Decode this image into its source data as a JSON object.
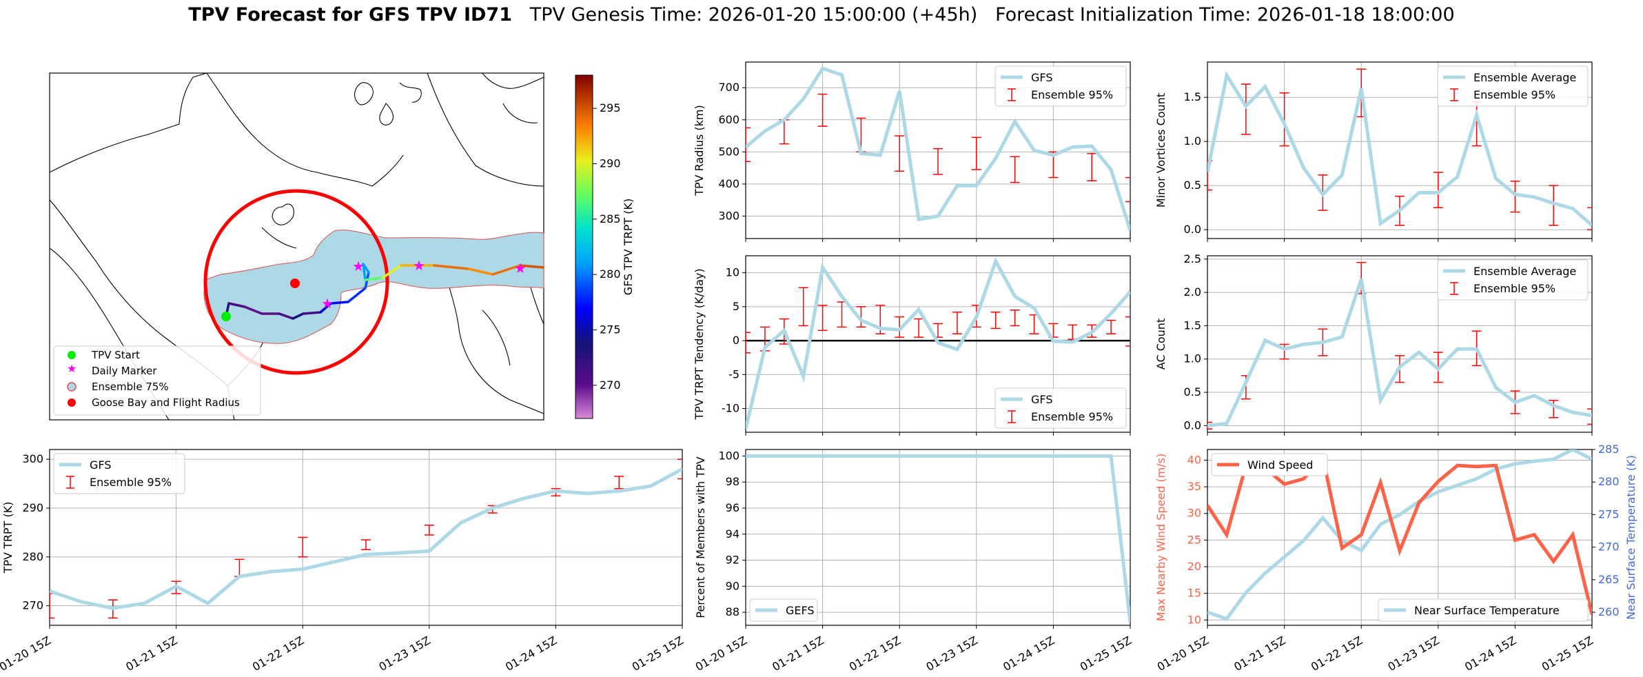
{
  "title": {
    "bold": "TPV Forecast for GFS TPV ID71",
    "genesis": "TPV Genesis Time: 2026-01-20 15:00:00 (+45h)",
    "init": "Forecast Initialization Time: 2026-01-18 18:00:00"
  },
  "x_ticks": [
    "01-20 15Z",
    "01-21 15Z",
    "01-22 15Z",
    "01-23 15Z",
    "01-24 15Z",
    "01-25 15Z"
  ],
  "colors": {
    "line": "#ADD8E6",
    "err": "#FF0000",
    "wind": "#FF6347",
    "temp_axis": "#4169E1"
  },
  "chart_data": [
    {
      "id": "map",
      "type": "scatter",
      "title": "TPV track map",
      "legend": [
        "TPV Start",
        "Daily Marker",
        "Ensemble 75%",
        "Goose Bay and Flight Radius"
      ],
      "legend_position": "lower-left",
      "colorbar": {
        "label": "GFS TPV TRPT (K)",
        "ticks": [
          270,
          275,
          280,
          285,
          290,
          295
        ],
        "range": [
          267,
          298
        ]
      },
      "track_trpt_k": [
        273,
        271,
        270,
        270,
        271,
        274,
        271,
        276,
        277,
        278,
        279,
        281,
        281,
        287,
        290,
        292,
        294,
        293,
        294,
        295,
        298
      ]
    },
    {
      "id": "radius",
      "type": "line",
      "ylabel": "TPV Radius (km)",
      "legend": [
        "GFS",
        "Ensemble 95%"
      ],
      "legend_position": "upper-right",
      "ylim": [
        230,
        780
      ],
      "yticks": [
        300,
        400,
        500,
        600,
        700
      ],
      "values": [
        515,
        565,
        600,
        665,
        760,
        740,
        495,
        490,
        690,
        290,
        300,
        395,
        395,
        480,
        595,
        505,
        490,
        515,
        518,
        445,
        255
      ],
      "errorbars": [
        {
          "x": 0,
          "lo": 470,
          "hi": 575
        },
        {
          "x": 2,
          "lo": 525,
          "hi": 600
        },
        {
          "x": 4,
          "lo": 580,
          "hi": 680
        },
        {
          "x": 6,
          "lo": 500,
          "hi": 605
        },
        {
          "x": 8,
          "lo": 440,
          "hi": 550
        },
        {
          "x": 10,
          "lo": 430,
          "hi": 510
        },
        {
          "x": 12,
          "lo": 445,
          "hi": 545
        },
        {
          "x": 14,
          "lo": 405,
          "hi": 485
        },
        {
          "x": 16,
          "lo": 420,
          "hi": 500
        },
        {
          "x": 18,
          "lo": 410,
          "hi": 495
        },
        {
          "x": 20,
          "lo": 345,
          "hi": 420
        }
      ]
    },
    {
      "id": "minor_vortices",
      "type": "line",
      "ylabel": "Minor Vortices Count",
      "legend": [
        "Ensemble Average",
        "Ensemble 95%"
      ],
      "legend_position": "upper-right",
      "ylim": [
        -0.1,
        1.9
      ],
      "yticks": [
        0.0,
        0.5,
        1.0,
        1.5
      ],
      "values": [
        0.65,
        1.75,
        1.4,
        1.62,
        1.2,
        0.7,
        0.4,
        0.62,
        1.6,
        0.07,
        0.22,
        0.42,
        0.42,
        0.6,
        1.3,
        0.58,
        0.4,
        0.37,
        0.3,
        0.24,
        0.05
      ],
      "errorbars": [
        {
          "x": 0,
          "lo": 0.45,
          "hi": 0.78
        },
        {
          "x": 2,
          "lo": 1.08,
          "hi": 1.65
        },
        {
          "x": 4,
          "lo": 0.95,
          "hi": 1.55
        },
        {
          "x": 6,
          "lo": 0.22,
          "hi": 0.62
        },
        {
          "x": 8,
          "lo": 1.28,
          "hi": 1.82
        },
        {
          "x": 10,
          "lo": 0.05,
          "hi": 0.38
        },
        {
          "x": 12,
          "lo": 0.25,
          "hi": 0.65
        },
        {
          "x": 14,
          "lo": 0.95,
          "hi": 1.45
        },
        {
          "x": 16,
          "lo": 0.2,
          "hi": 0.55
        },
        {
          "x": 18,
          "lo": 0.05,
          "hi": 0.5
        },
        {
          "x": 20,
          "lo": 0.0,
          "hi": 0.25
        }
      ]
    },
    {
      "id": "tendency",
      "type": "line",
      "ylabel": "TPV TRPT Tendency (K/day)",
      "legend": [
        "GFS",
        "Ensemble 95%"
      ],
      "legend_position": "lower-right",
      "ylim": [
        -13.5,
        12.5
      ],
      "yticks": [
        -10,
        -5,
        0,
        5,
        10
      ],
      "zero_line": true,
      "values": [
        -13,
        -1,
        1.5,
        -5.3,
        10.8,
        6.5,
        3,
        1.8,
        1.6,
        4.6,
        -0.3,
        -1.3,
        3.5,
        11.7,
        6.5,
        4.8,
        -0.1,
        -0.2,
        1.2,
        4,
        7.2
      ],
      "errorbars": [
        {
          "x": 0,
          "lo": -1.8,
          "hi": 1.2
        },
        {
          "x": 1,
          "lo": -1.5,
          "hi": 2.0
        },
        {
          "x": 2,
          "lo": -0.5,
          "hi": 3.2
        },
        {
          "x": 3,
          "lo": 2.2,
          "hi": 7.8
        },
        {
          "x": 4,
          "lo": 1.5,
          "hi": 5.2
        },
        {
          "x": 5,
          "lo": 2.0,
          "hi": 5.7
        },
        {
          "x": 6,
          "lo": 2.0,
          "hi": 5.0
        },
        {
          "x": 7,
          "lo": 1.0,
          "hi": 5.2
        },
        {
          "x": 8,
          "lo": 0.5,
          "hi": 3.5
        },
        {
          "x": 9,
          "lo": 0.5,
          "hi": 3.2
        },
        {
          "x": 10,
          "lo": 0.5,
          "hi": 2.5
        },
        {
          "x": 11,
          "lo": 1.0,
          "hi": 4.2
        },
        {
          "x": 12,
          "lo": 2.0,
          "hi": 5.2
        },
        {
          "x": 13,
          "lo": 1.8,
          "hi": 4.2
        },
        {
          "x": 14,
          "lo": 2.2,
          "hi": 4.5
        },
        {
          "x": 15,
          "lo": 1.0,
          "hi": 3.8
        },
        {
          "x": 16,
          "lo": 0.5,
          "hi": 2.5
        },
        {
          "x": 17,
          "lo": 0.2,
          "hi": 2.3
        },
        {
          "x": 18,
          "lo": 0.5,
          "hi": 2.3
        },
        {
          "x": 19,
          "lo": 1.0,
          "hi": 3.0
        },
        {
          "x": 20,
          "lo": -0.8,
          "hi": 3.5
        }
      ]
    },
    {
      "id": "ac_count",
      "type": "line",
      "ylabel": "AC Count",
      "legend": [
        "Ensemble Average",
        "Ensemble 95%"
      ],
      "legend_position": "upper-right",
      "ylim": [
        -0.1,
        2.55
      ],
      "yticks": [
        0.0,
        0.5,
        1.0,
        1.5,
        2.0,
        2.5
      ],
      "values": [
        0.0,
        0.03,
        0.65,
        1.28,
        1.15,
        1.22,
        1.25,
        1.33,
        2.2,
        0.38,
        0.88,
        1.1,
        0.85,
        1.15,
        1.15,
        0.57,
        0.35,
        0.45,
        0.3,
        0.2,
        0.15
      ],
      "errorbars": [
        {
          "x": 0,
          "lo": -0.05,
          "hi": 0.05
        },
        {
          "x": 2,
          "lo": 0.4,
          "hi": 0.75
        },
        {
          "x": 4,
          "lo": 1.0,
          "hi": 1.22
        },
        {
          "x": 6,
          "lo": 1.05,
          "hi": 1.45
        },
        {
          "x": 8,
          "lo": 1.98,
          "hi": 2.45
        },
        {
          "x": 10,
          "lo": 0.65,
          "hi": 1.05
        },
        {
          "x": 12,
          "lo": 0.65,
          "hi": 1.1
        },
        {
          "x": 14,
          "lo": 0.9,
          "hi": 1.42
        },
        {
          "x": 16,
          "lo": 0.18,
          "hi": 0.52
        },
        {
          "x": 18,
          "lo": 0.12,
          "hi": 0.38
        },
        {
          "x": 20,
          "lo": 0.02,
          "hi": 0.25
        }
      ]
    },
    {
      "id": "trpt",
      "type": "line",
      "ylabel": "TPV TRPT (K)",
      "legend": [
        "GFS",
        "Ensemble 95%"
      ],
      "legend_position": "upper-left",
      "ylim": [
        266,
        302
      ],
      "yticks": [
        270,
        280,
        290,
        300
      ],
      "values": [
        273,
        270.8,
        269.5,
        270.5,
        274,
        270.5,
        276,
        277,
        277.5,
        279,
        280.5,
        280.8,
        281.2,
        287,
        290,
        292,
        293.5,
        293,
        293.5,
        294.5,
        298
      ],
      "errorbars": [
        {
          "x": 0,
          "lo": 267.5,
          "hi": 272.5
        },
        {
          "x": 2,
          "lo": 267.5,
          "hi": 271.2
        },
        {
          "x": 4,
          "lo": 272.5,
          "hi": 275
        },
        {
          "x": 6,
          "lo": 276,
          "hi": 279.5
        },
        {
          "x": 8,
          "lo": 280,
          "hi": 284
        },
        {
          "x": 10,
          "lo": 281.5,
          "hi": 283.5
        },
        {
          "x": 12,
          "lo": 284.5,
          "hi": 286.5
        },
        {
          "x": 14,
          "lo": 289,
          "hi": 290.5
        },
        {
          "x": 16,
          "lo": 292.5,
          "hi": 294
        },
        {
          "x": 18,
          "lo": 294,
          "hi": 296.5
        },
        {
          "x": 20,
          "lo": 296,
          "hi": 300
        }
      ]
    },
    {
      "id": "members",
      "type": "line",
      "ylabel": "Percent of Members with TPV",
      "legend": [
        "GEFS"
      ],
      "legend_position": "lower-left",
      "ylim": [
        87,
        100.5
      ],
      "yticks": [
        88,
        90,
        92,
        94,
        96,
        98,
        100
      ],
      "values": [
        100,
        100,
        100,
        100,
        100,
        100,
        100,
        100,
        100,
        100,
        100,
        100,
        100,
        100,
        100,
        100,
        100,
        100,
        100,
        100,
        87.2
      ]
    },
    {
      "id": "wind_temp",
      "type": "line",
      "ylabel": "Max Nearby Wind Speed (m/s)",
      "y2label": "Near Surface Temperature (K)",
      "legend": [
        "Wind Speed",
        "Near Surface Temperature"
      ],
      "legend_position": "upper-left / lower-right",
      "ylim": [
        9,
        42
      ],
      "yticks": [
        10,
        15,
        20,
        25,
        30,
        35,
        40
      ],
      "y2lim": [
        258,
        285
      ],
      "y2ticks": [
        260,
        265,
        270,
        275,
        280,
        285
      ],
      "series": [
        {
          "name": "Wind Speed",
          "axis": "left",
          "values": [
            31.5,
            26,
            39,
            38.5,
            35.5,
            36.5,
            40.5,
            23.5,
            26,
            35.8,
            23,
            32,
            36,
            39,
            38.8,
            39,
            25,
            26,
            21,
            26,
            11
          ]
        },
        {
          "name": "Near Surface Temperature",
          "axis": "right",
          "values": [
            260,
            259,
            263,
            266,
            268.5,
            271,
            274.5,
            271,
            269.5,
            273.5,
            275,
            277,
            278.5,
            279.5,
            280.5,
            282,
            282.8,
            283.2,
            283.5,
            285,
            283.5
          ]
        }
      ]
    }
  ]
}
